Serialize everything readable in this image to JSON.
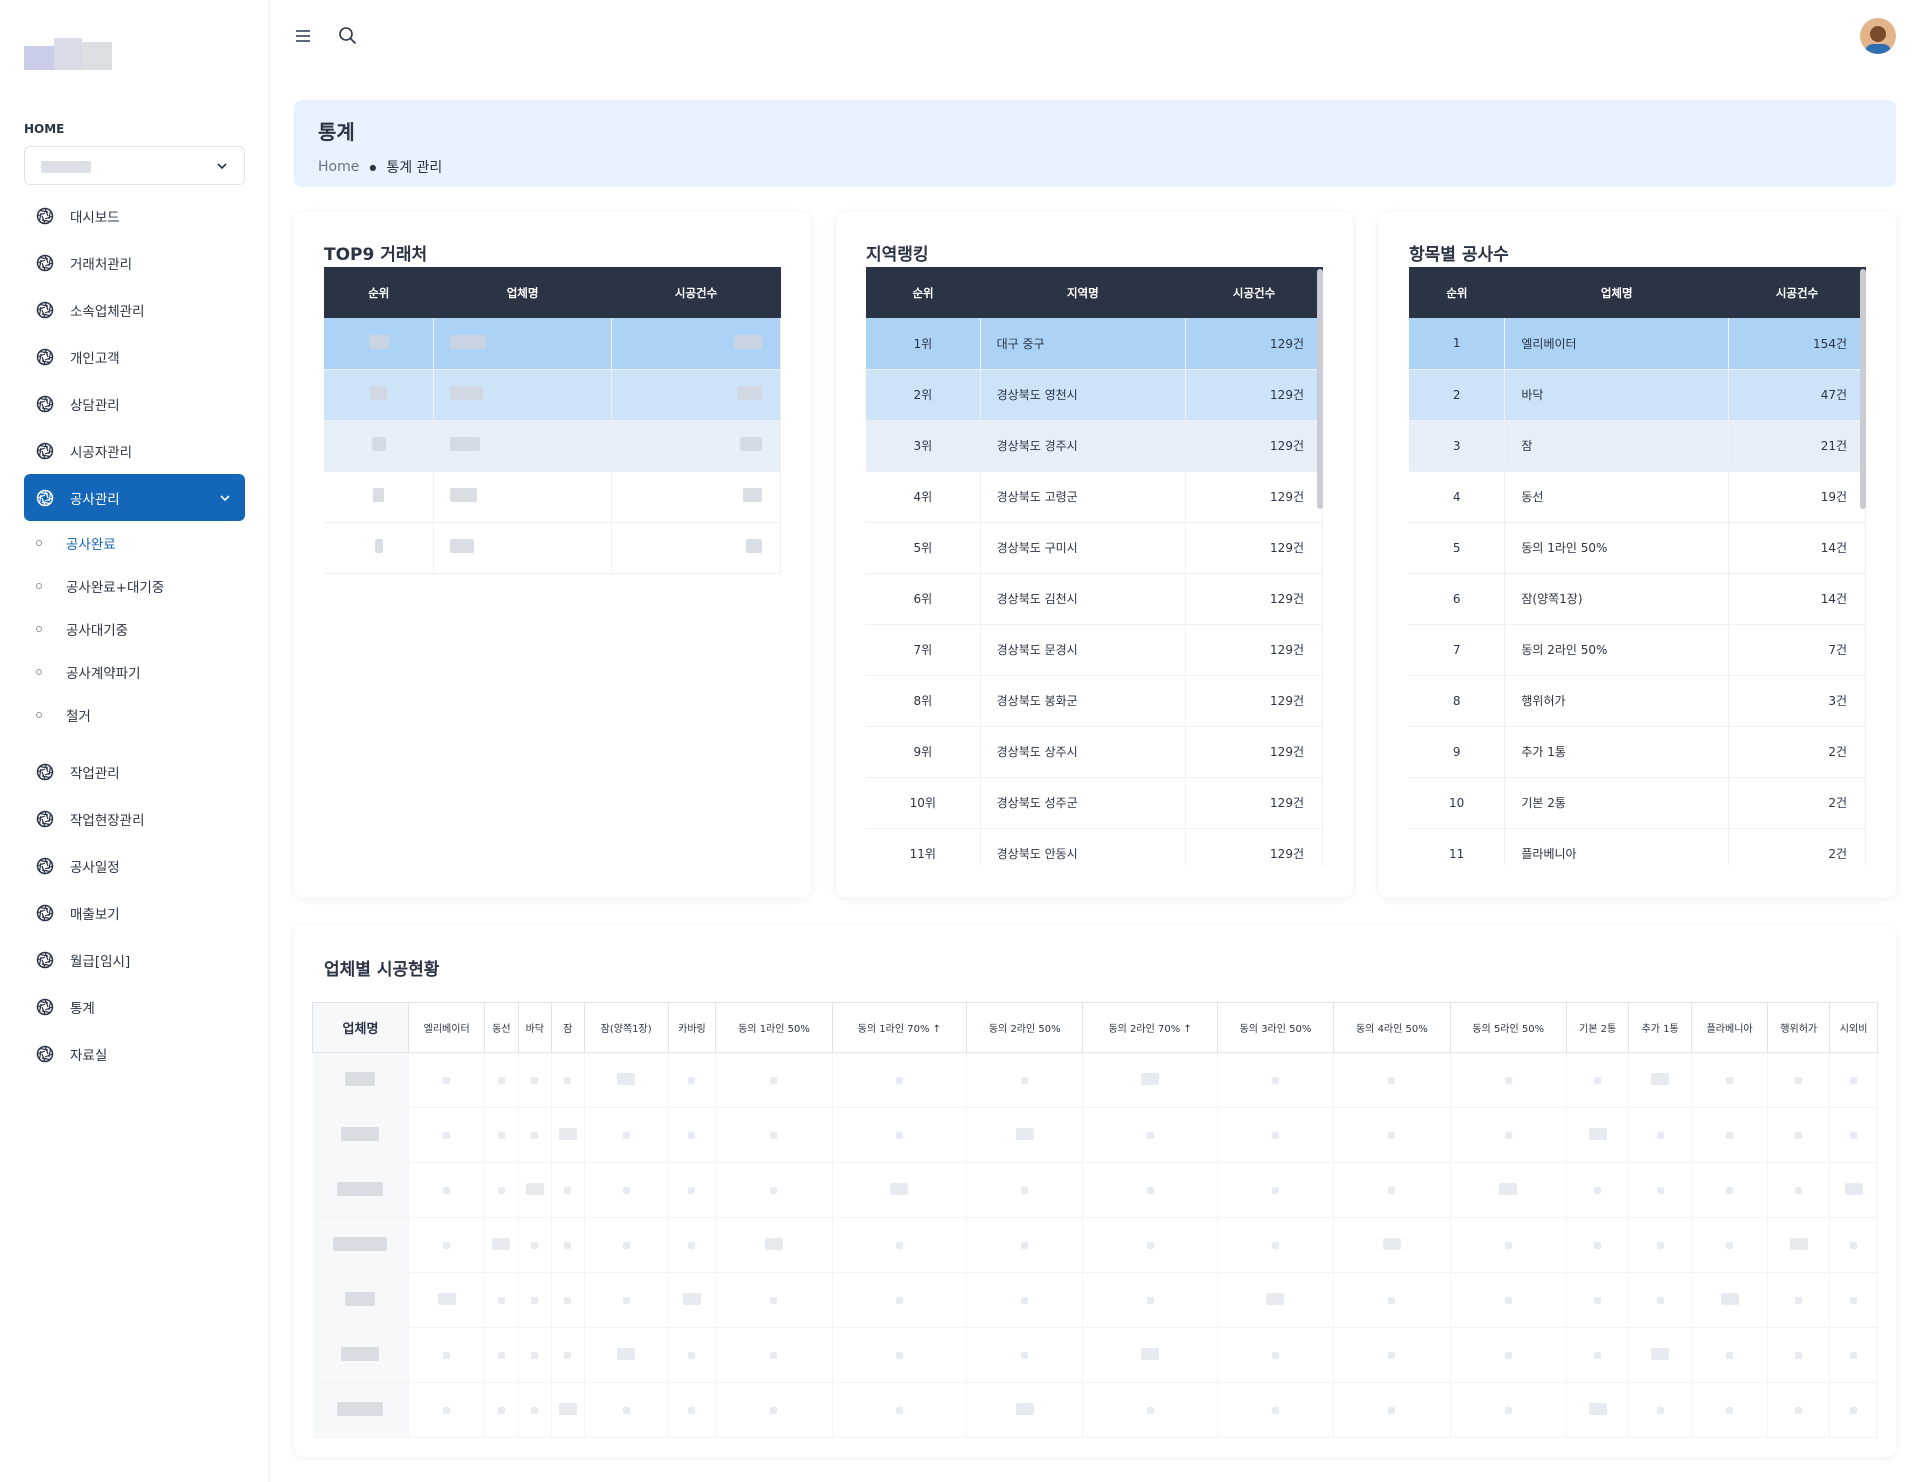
{
  "sidebar": {
    "home_label": "HOME",
    "menu_top": [
      "대시보드",
      "거래처관리",
      "소속업체관리",
      "개인고객",
      "상담관리",
      "시공자관리",
      "공사관리"
    ],
    "submenu": [
      "공사완료",
      "공사완료+대기중",
      "공사대기중",
      "공사계약파기",
      "철거"
    ],
    "menu_bottom": [
      "작업관리",
      "작업현장관리",
      "공사일정",
      "매출보기",
      "월급[임시]",
      "통계",
      "자료실"
    ]
  },
  "header": {
    "title": "통계",
    "breadcrumb": [
      "Home",
      "통계 관리"
    ]
  },
  "top9": {
    "title": "TOP9 거래처",
    "columns": [
      "순위",
      "업체명",
      "시공건수"
    ]
  },
  "region": {
    "title": "지역랭킹",
    "columns": [
      "순위",
      "지역명",
      "시공건수"
    ],
    "rows": [
      [
        "1위",
        "대구 중구",
        "129건"
      ],
      [
        "2위",
        "경상북도 영천시",
        "129건"
      ],
      [
        "3위",
        "경상북도 경주시",
        "129건"
      ],
      [
        "4위",
        "경상북도 고령군",
        "129건"
      ],
      [
        "5위",
        "경상북도 구미시",
        "129건"
      ],
      [
        "6위",
        "경상북도 김천시",
        "129건"
      ],
      [
        "7위",
        "경상북도 문경시",
        "129건"
      ],
      [
        "8위",
        "경상북도 봉화군",
        "129건"
      ],
      [
        "9위",
        "경상북도 상주시",
        "129건"
      ],
      [
        "10위",
        "경상북도 성주군",
        "129건"
      ],
      [
        "11위",
        "경상북도 안동시",
        "129건"
      ]
    ]
  },
  "items": {
    "title": "항목별 공사수",
    "columns": [
      "순위",
      "업체명",
      "시공건수"
    ],
    "rows": [
      [
        "1",
        "엘리베이터",
        "154건"
      ],
      [
        "2",
        "바닥",
        "47건"
      ],
      [
        "3",
        "잠",
        "21건"
      ],
      [
        "4",
        "동선",
        "19건"
      ],
      [
        "5",
        "동의 1라인 50%",
        "14건"
      ],
      [
        "6",
        "잠(양쪽1장)",
        "14건"
      ],
      [
        "7",
        "동의 2라인 50%",
        "7건"
      ],
      [
        "8",
        "행위허가",
        "3건"
      ],
      [
        "9",
        "추가 1통",
        "2건"
      ],
      [
        "10",
        "기본 2통",
        "2건"
      ],
      [
        "11",
        "플라베니아",
        "2건"
      ]
    ]
  },
  "status": {
    "title": "업체별 시공현황",
    "columns": [
      "업체명",
      "엘리베이터",
      "동선",
      "바닥",
      "잠",
      "잠(양쪽1장)",
      "카바링",
      "동의 1라인 50%",
      "동의 1라인 70% ↑",
      "동의 2라인 50%",
      "동의 2라인 70% ↑",
      "동의 3라인 50%",
      "동의 4라인 50%",
      "동의 5라인 50%",
      "기본 2통",
      "추가 1통",
      "플라베니아",
      "행위허가",
      "시외비"
    ]
  }
}
